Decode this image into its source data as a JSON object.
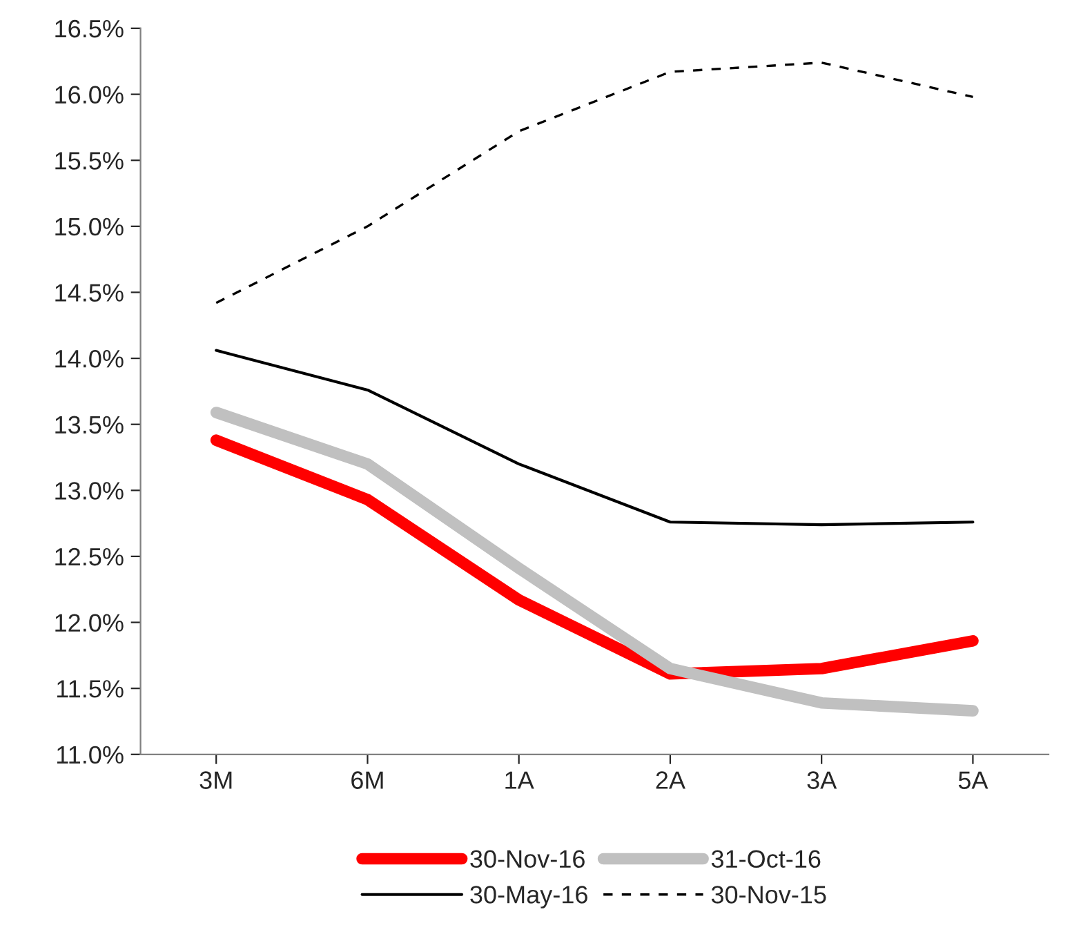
{
  "chart_data": {
    "type": "line",
    "categories": [
      "3M",
      "6M",
      "1A",
      "2A",
      "3A",
      "5A"
    ],
    "series": [
      {
        "name": "30-Nov-16",
        "color": "#ff0000",
        "line_style": "solid",
        "values": [
          13.38,
          12.93,
          12.17,
          11.61,
          11.65,
          11.86
        ]
      },
      {
        "name": "31-Oct-16",
        "color": "#c0c0c0",
        "line_style": "solid",
        "values": [
          13.59,
          13.2,
          12.41,
          11.65,
          11.39,
          11.33
        ]
      },
      {
        "name": "30-May-16",
        "color": "#000000",
        "line_style": "solid",
        "values": [
          14.06,
          13.76,
          13.2,
          12.76,
          12.74,
          12.76
        ]
      },
      {
        "name": "30-Nov-15",
        "color": "#000000",
        "line_style": "dashed",
        "values": [
          14.42,
          15.0,
          15.72,
          16.17,
          16.24,
          15.98
        ]
      }
    ],
    "ylim": [
      11.0,
      16.5
    ],
    "yticks": [
      {
        "value": 11.0,
        "label": "11.0%"
      },
      {
        "value": 11.5,
        "label": "11.5%"
      },
      {
        "value": 12.0,
        "label": "12.0%"
      },
      {
        "value": 12.5,
        "label": "12.5%"
      },
      {
        "value": 13.0,
        "label": "13.0%"
      },
      {
        "value": 13.5,
        "label": "13.5%"
      },
      {
        "value": 14.0,
        "label": "14.0%"
      },
      {
        "value": 14.5,
        "label": "14.5%"
      },
      {
        "value": 15.0,
        "label": "15.0%"
      },
      {
        "value": 15.5,
        "label": "15.5%"
      },
      {
        "value": 16.0,
        "label": "16.0%"
      },
      {
        "value": 16.5,
        "label": "16.5%"
      }
    ],
    "grid": false,
    "legend": "bottom",
    "marker": "none"
  }
}
